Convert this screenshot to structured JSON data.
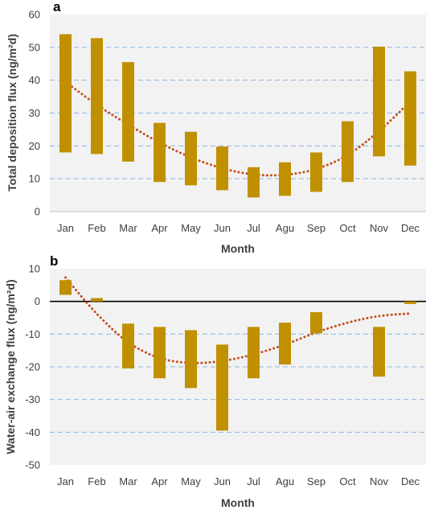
{
  "colors": {
    "bar": "#C09000",
    "trend": "#C5501E",
    "grid": "#8EB4E3",
    "plot_bg": "#F2F2F2",
    "axis_text": "#404040"
  },
  "chart_data": [
    {
      "type": "bar",
      "subtype": "floating-range",
      "panel_label": "a",
      "title": "",
      "xlabel": "Month",
      "ylabel": "Total deposition flux (ng/m²d)",
      "categories": [
        "Jan",
        "Feb",
        "Mar",
        "Apr",
        "May",
        "Jun",
        "Jul",
        "Agu",
        "Sep",
        "Oct",
        "Nov",
        "Dec"
      ],
      "series": [
        {
          "low": [
            18,
            17.5,
            15.2,
            9,
            8,
            6.5,
            4.3,
            4.8,
            6,
            9,
            16.8,
            14
          ],
          "high": [
            54,
            52.8,
            45.5,
            27,
            24.3,
            19.8,
            13.5,
            15,
            18,
            27.5,
            50.2,
            42.7
          ]
        }
      ],
      "trendline": {
        "style": "dotted",
        "values": [
          39.5,
          32.5,
          26.5,
          21,
          16.5,
          13.2,
          11.3,
          11.2,
          13,
          17.2,
          24.5,
          33.5
        ]
      },
      "ylim": [
        0,
        60
      ],
      "yticks": [
        0,
        10,
        20,
        30,
        40,
        50,
        60
      ],
      "grid": true
    },
    {
      "type": "bar",
      "subtype": "floating-range",
      "panel_label": "b",
      "title": "",
      "xlabel": "Month",
      "ylabel": "Water-air exchange flux (ng/m²d)",
      "categories": [
        "Jan",
        "Feb",
        "Mar",
        "Apr",
        "May",
        "Jun",
        "Jul",
        "Agu",
        "Sep",
        "Oct",
        "Nov",
        "Dec"
      ],
      "series": [
        {
          "low": [
            2,
            0,
            -20.5,
            -23.5,
            -26.5,
            -39.5,
            -23.5,
            -19.3,
            -9.8,
            null,
            -23,
            -0.8
          ],
          "high": [
            6.5,
            1,
            -6.8,
            -7.8,
            -8.8,
            -13.2,
            -7.8,
            -6.5,
            -3.3,
            null,
            -7.8,
            0
          ]
        }
      ],
      "trendline": {
        "style": "dotted",
        "values": [
          7.3,
          -3.8,
          -12.5,
          -17.3,
          -18.8,
          -18.2,
          -16.2,
          -13.2,
          -9.5,
          -6.5,
          -4.5,
          -3.7
        ]
      },
      "ylim": [
        -50,
        10
      ],
      "yticks": [
        -50,
        -40,
        -30,
        -20,
        -10,
        0,
        10
      ],
      "grid": true
    }
  ]
}
